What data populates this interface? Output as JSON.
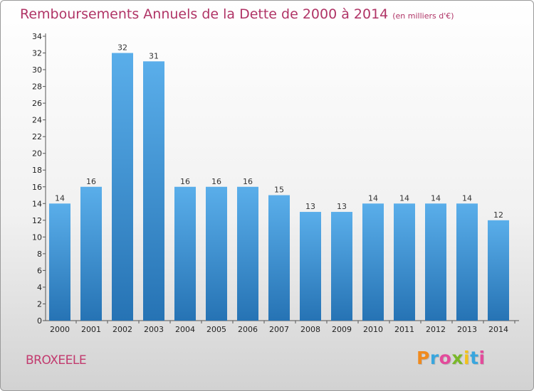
{
  "title": "Remboursements Annuels de la Dette de 2000 à 2014",
  "subtitle": "(en milliers d'€)",
  "commune": "BROXEELE",
  "logo": {
    "text": "Proxiti",
    "colors": [
      "#f08a1e",
      "#39a6de",
      "#e34b9b",
      "#7ab829",
      "#f3c21a",
      "#39a6de",
      "#e34b9b"
    ]
  },
  "chart_data": {
    "type": "bar",
    "categories": [
      "2000",
      "2001",
      "2002",
      "2003",
      "2004",
      "2005",
      "2006",
      "2007",
      "2008",
      "2009",
      "2010",
      "2011",
      "2012",
      "2013",
      "2014"
    ],
    "values": [
      14,
      16,
      32,
      31,
      16,
      16,
      16,
      15,
      13,
      13,
      14,
      14,
      14,
      14,
      12
    ],
    "ylim": [
      0,
      34
    ],
    "yticks": [
      0,
      2,
      4,
      6,
      8,
      10,
      12,
      14,
      16,
      18,
      20,
      22,
      24,
      26,
      28,
      30,
      32,
      34
    ],
    "grid": false,
    "bar_color_top": "#5aaeea",
    "bar_color_bottom": "#2673b4"
  }
}
